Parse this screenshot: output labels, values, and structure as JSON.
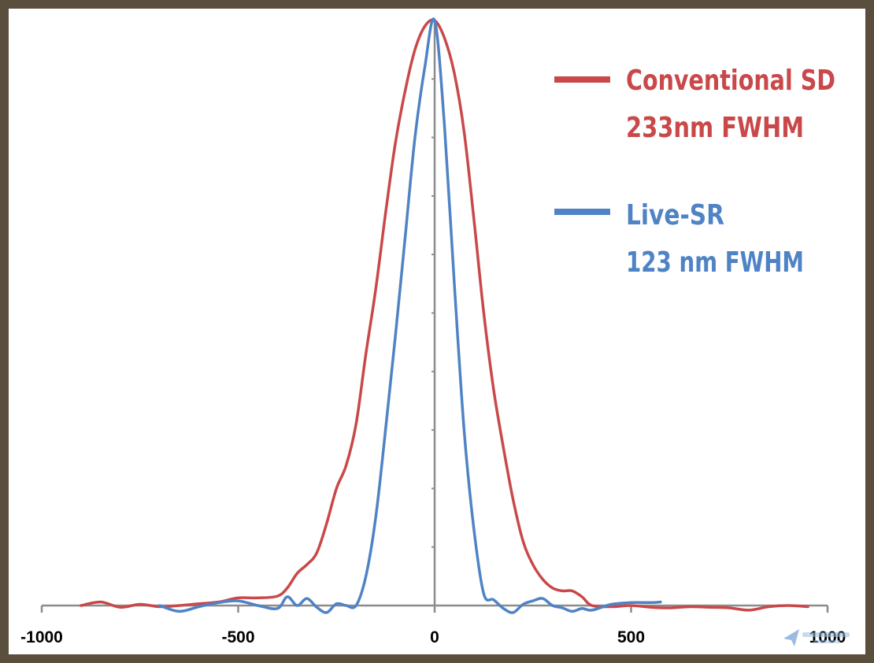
{
  "chart_data": {
    "type": "line",
    "title": "",
    "xlabel": "",
    "ylabel": "",
    "xlim": [
      -1000,
      1000
    ],
    "ylim": [
      0,
      1
    ],
    "x_ticks": [
      -1000,
      -500,
      0,
      500,
      1000
    ],
    "x_tick_labels": [
      "-1000",
      "-500",
      "0",
      "500",
      "1000"
    ],
    "grid": false,
    "legend_position": "top-right",
    "series": [
      {
        "name": "Conventional SD",
        "note": "233nm FWHM",
        "color": "#c9484a",
        "x": [
          -900,
          -850,
          -800,
          -750,
          -700,
          -650,
          -600,
          -550,
          -500,
          -450,
          -400,
          -375,
          -350,
          -325,
          -300,
          -275,
          -250,
          -225,
          -200,
          -175,
          -150,
          -125,
          -100,
          -75,
          -50,
          -25,
          0,
          25,
          50,
          75,
          100,
          125,
          150,
          175,
          200,
          225,
          250,
          275,
          300,
          325,
          350,
          375,
          400,
          450,
          500,
          550,
          600,
          650,
          700,
          750,
          800,
          850,
          900,
          950
        ],
        "y": [
          0.0,
          0.006,
          -0.003,
          0.002,
          -0.002,
          0.0,
          0.003,
          0.006,
          0.013,
          0.013,
          0.016,
          0.03,
          0.055,
          0.07,
          0.09,
          0.14,
          0.2,
          0.24,
          0.31,
          0.43,
          0.54,
          0.67,
          0.79,
          0.88,
          0.95,
          0.99,
          1.0,
          0.97,
          0.91,
          0.81,
          0.66,
          0.5,
          0.37,
          0.27,
          0.18,
          0.11,
          0.07,
          0.045,
          0.03,
          0.025,
          0.025,
          0.015,
          0.0,
          -0.002,
          0.0,
          -0.003,
          -0.004,
          -0.002,
          -0.003,
          -0.004,
          -0.008,
          -0.002,
          0.0,
          -0.002
        ]
      },
      {
        "name": "Live-SR",
        "note": "123 nm FWHM",
        "color": "#4f83c5",
        "x": [
          -700,
          -650,
          -600,
          -550,
          -500,
          -450,
          -400,
          -375,
          -350,
          -325,
          -300,
          -275,
          -250,
          -225,
          -200,
          -175,
          -150,
          -125,
          -100,
          -75,
          -50,
          -25,
          0,
          25,
          50,
          75,
          100,
          125,
          150,
          175,
          200,
          225,
          250,
          275,
          300,
          325,
          350,
          375,
          400,
          450,
          500,
          550,
          575
        ],
        "y": [
          0.0,
          -0.01,
          -0.002,
          0.005,
          0.008,
          0.0,
          -0.005,
          0.015,
          0.0,
          0.012,
          -0.003,
          -0.012,
          0.003,
          0.0,
          0.0,
          0.05,
          0.15,
          0.3,
          0.46,
          0.63,
          0.8,
          0.92,
          1.0,
          0.82,
          0.55,
          0.3,
          0.13,
          0.02,
          0.01,
          -0.005,
          -0.012,
          0.002,
          0.008,
          0.012,
          0.0,
          -0.004,
          -0.01,
          -0.005,
          -0.008,
          0.002,
          0.005,
          0.005,
          0.006
        ]
      }
    ]
  }
}
